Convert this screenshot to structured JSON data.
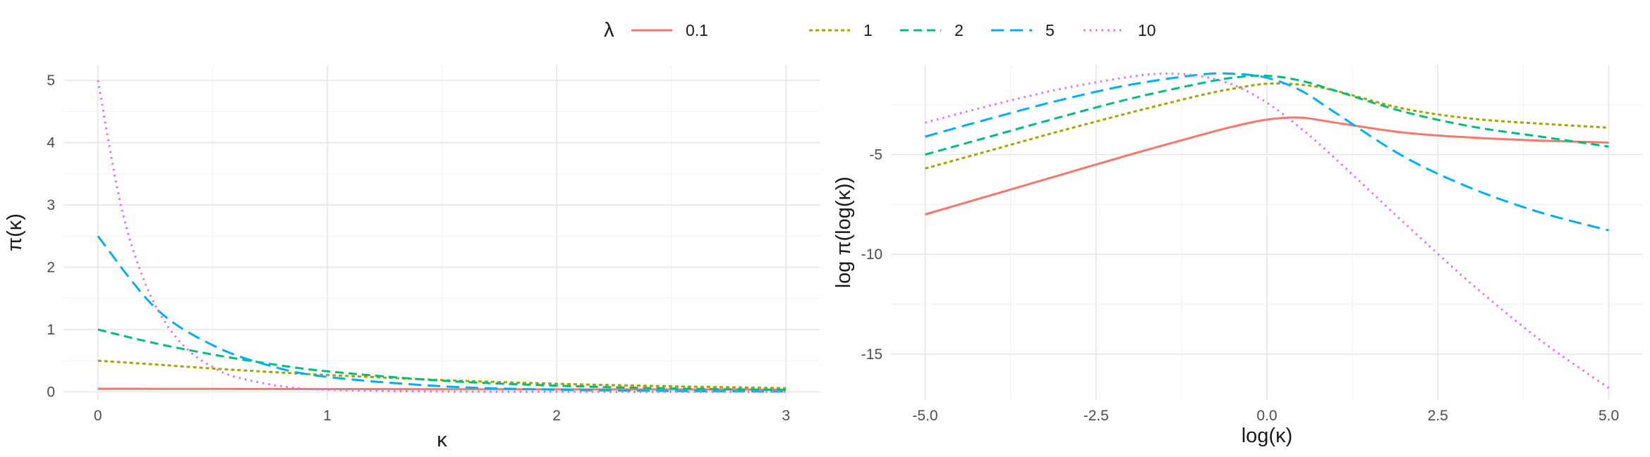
{
  "legend": {
    "title": "λ",
    "placement": "top",
    "entries": [
      {
        "label": "0.1",
        "color": "#F8766D",
        "dash": "solid"
      },
      {
        "label": "1",
        "color": "#A3A500",
        "dash": "dotted-short"
      },
      {
        "label": "2",
        "color": "#00BF7D",
        "dash": "dashed"
      },
      {
        "label": "5",
        "color": "#00B0F6",
        "dash": "longdash"
      },
      {
        "label": "10",
        "color": "#E76BF3",
        "dash": "dotted"
      }
    ]
  },
  "chart_data": [
    {
      "type": "line",
      "xlabel": "κ",
      "ylabel": "π(κ)",
      "xlim": [
        -0.15,
        3.15
      ],
      "ylim": [
        -0.13,
        5.25
      ],
      "xticks": [
        0,
        1,
        2,
        3
      ],
      "xtick_labels": [
        "0",
        "1",
        "2",
        "3"
      ],
      "yticks": [
        0,
        1,
        2,
        3,
        4,
        5
      ],
      "ytick_labels": [
        "0",
        "1",
        "2",
        "3",
        "4",
        "5"
      ],
      "grid": true,
      "series": [
        {
          "name": "0.1",
          "x": [
            0,
            0.25,
            0.5,
            0.75,
            1,
            1.5,
            2,
            2.5,
            3
          ],
          "values": [
            0.05,
            0.049,
            0.048,
            0.046,
            0.045,
            0.043,
            0.041,
            0.039,
            0.037
          ]
        },
        {
          "name": "1",
          "x": [
            0,
            0.25,
            0.5,
            0.75,
            1,
            1.5,
            2,
            2.5,
            3
          ],
          "values": [
            0.5,
            0.44,
            0.375,
            0.32,
            0.27,
            0.19,
            0.13,
            0.09,
            0.06
          ]
        },
        {
          "name": "2",
          "x": [
            0,
            0.25,
            0.5,
            0.75,
            1,
            1.5,
            2,
            2.5,
            3
          ],
          "values": [
            1.0,
            0.78,
            0.6,
            0.45,
            0.33,
            0.18,
            0.1,
            0.055,
            0.03
          ]
        },
        {
          "name": "5",
          "x": [
            0,
            0.25,
            0.5,
            0.75,
            1,
            1.5,
            2,
            2.5,
            3
          ],
          "values": [
            2.5,
            1.35,
            0.75,
            0.42,
            0.24,
            0.09,
            0.035,
            0.015,
            0.006
          ]
        },
        {
          "name": "10",
          "x": [
            0,
            0.1,
            0.2,
            0.3,
            0.4,
            0.5,
            0.6,
            0.8,
            1,
            1.5,
            2,
            3
          ],
          "values": [
            5.0,
            3.0,
            1.8,
            1.08,
            0.65,
            0.4,
            0.24,
            0.09,
            0.035,
            0.005,
            0.001,
            0.0
          ]
        }
      ]
    },
    {
      "type": "line",
      "xlabel": "log(κ)",
      "ylabel": "log π(log(κ))",
      "xlim": [
        -5.5,
        5.5
      ],
      "ylim": [
        -17.3,
        -0.5
      ],
      "xticks": [
        -5,
        -2.5,
        0,
        2.5,
        5
      ],
      "xtick_labels": [
        "-5.0",
        "-2.5",
        "0.0",
        "2.5",
        "5.0"
      ],
      "yticks": [
        -5,
        -10,
        -15
      ],
      "ytick_labels": [
        "-5",
        "-10",
        "-15"
      ],
      "grid": true,
      "series": [
        {
          "name": "0.1",
          "x": [
            -5,
            -4,
            -3,
            -2,
            -1,
            -0.5,
            0,
            0.5,
            1,
            2,
            3,
            4,
            5
          ],
          "values": [
            -8.0,
            -7.0,
            -6.0,
            -5.0,
            -4.05,
            -3.6,
            -3.25,
            -3.15,
            -3.4,
            -3.9,
            -4.15,
            -4.3,
            -4.4
          ]
        },
        {
          "name": "1",
          "x": [
            -5,
            -4,
            -3,
            -2,
            -1,
            -0.5,
            0,
            0.5,
            1,
            2,
            3,
            4,
            5
          ],
          "values": [
            -5.7,
            -4.75,
            -3.8,
            -2.9,
            -2.05,
            -1.7,
            -1.45,
            -1.5,
            -1.8,
            -2.7,
            -3.2,
            -3.45,
            -3.65
          ]
        },
        {
          "name": "2",
          "x": [
            -5,
            -4,
            -3,
            -2,
            -1,
            -0.5,
            0,
            0.5,
            1,
            2,
            3,
            4,
            5
          ],
          "values": [
            -5.0,
            -4.05,
            -3.1,
            -2.2,
            -1.45,
            -1.15,
            -1.05,
            -1.3,
            -1.8,
            -2.85,
            -3.6,
            -4.1,
            -4.6
          ]
        },
        {
          "name": "5",
          "x": [
            -5,
            -4,
            -3,
            -2,
            -1,
            -0.5,
            0,
            0.5,
            1,
            2,
            3,
            4,
            5
          ],
          "values": [
            -4.1,
            -3.15,
            -2.25,
            -1.5,
            -1.0,
            -0.95,
            -1.15,
            -1.8,
            -2.9,
            -5.1,
            -6.7,
            -7.9,
            -8.8
          ]
        },
        {
          "name": "10",
          "x": [
            -5,
            -4,
            -3,
            -2,
            -1.5,
            -1,
            -0.5,
            0,
            0.5,
            1,
            2,
            3,
            4,
            5
          ],
          "values": [
            -3.4,
            -2.5,
            -1.7,
            -1.1,
            -0.95,
            -1.05,
            -1.5,
            -2.4,
            -3.7,
            -5.2,
            -8.4,
            -11.5,
            -14.3,
            -16.7
          ]
        }
      ]
    }
  ]
}
